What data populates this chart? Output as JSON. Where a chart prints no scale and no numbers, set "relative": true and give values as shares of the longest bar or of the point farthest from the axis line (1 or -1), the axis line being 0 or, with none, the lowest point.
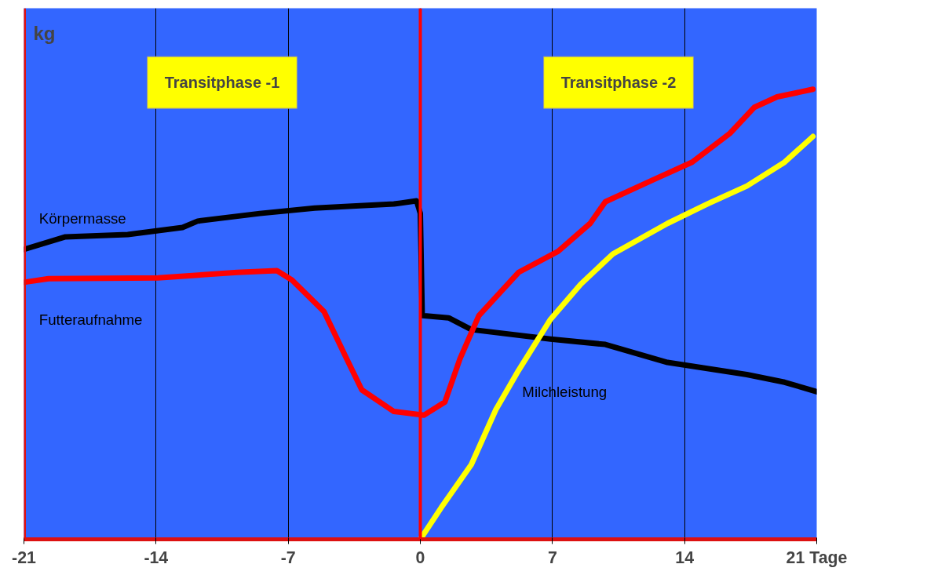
{
  "chart_data": {
    "type": "line",
    "relative": true,
    "ylabel": "kg",
    "xlim": [
      -21,
      21
    ],
    "xticks": [
      -21,
      -14,
      -7,
      0,
      7,
      14,
      {
        "value": 21,
        "label": "21 Tage"
      }
    ],
    "grid": "x",
    "marker": "none",
    "line_style": "solid",
    "ref_lines": [
      {
        "axis": "x",
        "value": 0,
        "color": "#ff0000"
      }
    ],
    "annotations": [
      "Transitphase -1",
      "Transitphase -2"
    ],
    "series": [
      {
        "name": "Körpermasse",
        "color": "#000000",
        "x": [
          -21,
          -18.8,
          -15.5,
          -12.6,
          -11.8,
          -8.5,
          -5.6,
          -1.4,
          -0.2,
          0,
          0.1,
          1.5,
          2.7,
          6.9,
          9.8,
          13.1,
          17.3,
          19.3,
          21
        ],
        "values": [
          0.644,
          0.672,
          0.677,
          0.693,
          0.707,
          0.724,
          0.736,
          0.745,
          0.752,
          0.724,
          0.497,
          0.492,
          0.466,
          0.445,
          0.433,
          0.393,
          0.366,
          0.349,
          0.328
        ]
      },
      {
        "name": "Futteraufnahme",
        "color": "#ff0000",
        "x": [
          -21,
          -19.7,
          -13.9,
          -9.7,
          -7.6,
          -6.8,
          -5.1,
          -3.9,
          -3.1,
          -1.4,
          0.2,
          1.3,
          2.1,
          3.1,
          5.2,
          7.3,
          9.0,
          9.8,
          12.3,
          14.4,
          16.4,
          17.7,
          18.9,
          20.8
        ],
        "values": [
          0.571,
          0.579,
          0.581,
          0.593,
          0.597,
          0.576,
          0.506,
          0.401,
          0.332,
          0.284,
          0.276,
          0.305,
          0.401,
          0.497,
          0.593,
          0.64,
          0.702,
          0.75,
          0.798,
          0.838,
          0.902,
          0.96,
          0.983,
          1.0
        ]
      },
      {
        "name": "Milchleistung",
        "color": "#ffff00",
        "x": [
          0,
          1.1,
          2.7,
          4.0,
          5.2,
          6.9,
          8.5,
          10.2,
          13.1,
          15.2,
          17.3,
          19.3,
          20.8
        ],
        "values": [
          0,
          0.07,
          0.166,
          0.288,
          0.375,
          0.489,
          0.567,
          0.634,
          0.702,
          0.745,
          0.785,
          0.838,
          0.895
        ]
      }
    ]
  }
}
